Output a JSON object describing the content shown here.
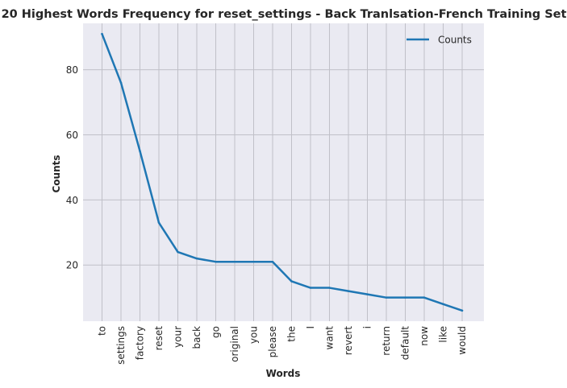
{
  "chart_data": {
    "type": "line",
    "title": "20 Highest Words Frequency for reset_settings - Back Tranlsation-French Training Set",
    "xlabel": "Words",
    "ylabel": "Counts",
    "categories": [
      "to",
      "settings",
      "factory",
      "reset",
      "your",
      "back",
      "go",
      "original",
      "you",
      "please",
      "the",
      "I",
      "want",
      "revert",
      "i",
      "return",
      "default",
      "now",
      "like",
      "would"
    ],
    "series": [
      {
        "name": "Counts",
        "color": "#1f77b4",
        "values": [
          91,
          76,
          55,
          33,
          24,
          22,
          21,
          21,
          21,
          21,
          15,
          13,
          13,
          12,
          11,
          10,
          10,
          10,
          8,
          6
        ]
      }
    ],
    "yticks": [
      20,
      40,
      60,
      80
    ],
    "ylim": [
      2.75,
      94.25
    ],
    "grid": true,
    "legend": "top-right",
    "background": "#eaeaf2",
    "grid_color": "#c0c0c8"
  }
}
